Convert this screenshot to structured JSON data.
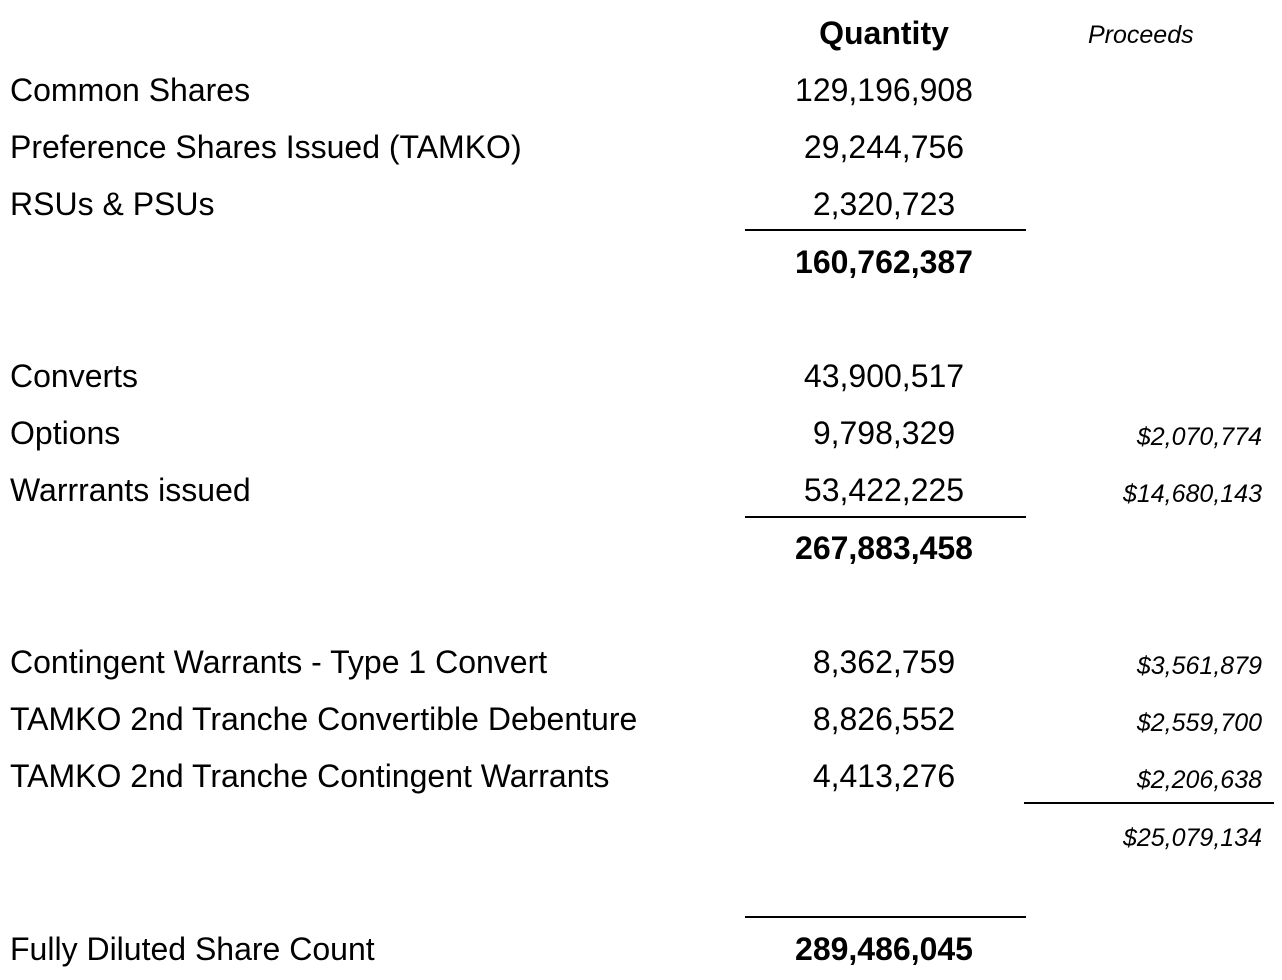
{
  "header": {
    "quantity": "Quantity",
    "proceeds": "Proceeds"
  },
  "section1": {
    "rows": [
      {
        "label": "Common Shares",
        "quantity": "129,196,908"
      },
      {
        "label": "Preference Shares Issued (TAMKO)",
        "quantity": "29,244,756"
      },
      {
        "label": "RSUs & PSUs",
        "quantity": "2,320,723"
      }
    ],
    "subtotal": "160,762,387"
  },
  "section2": {
    "rows": [
      {
        "label": "Converts",
        "quantity": "43,900,517",
        "proceeds": ""
      },
      {
        "label": "Options",
        "quantity": "9,798,329",
        "proceeds": "$2,070,774"
      },
      {
        "label": "Warrrants issued",
        "quantity": "53,422,225",
        "proceeds": "$14,680,143"
      }
    ],
    "subtotal": "267,883,458"
  },
  "section3": {
    "rows": [
      {
        "label": "Contingent Warrants - Type 1 Convert",
        "quantity": "8,362,759",
        "proceeds": "$3,561,879"
      },
      {
        "label": "TAMKO 2nd Tranche Convertible Debenture",
        "quantity": "8,826,552",
        "proceeds": "$2,559,700"
      },
      {
        "label": "TAMKO 2nd Tranche Contingent Warrants",
        "quantity": "4,413,276",
        "proceeds": "$2,206,638"
      }
    ],
    "proceeds_total": "$25,079,134"
  },
  "total": {
    "label": "Fully Diluted Share Count",
    "quantity": "289,486,045"
  }
}
